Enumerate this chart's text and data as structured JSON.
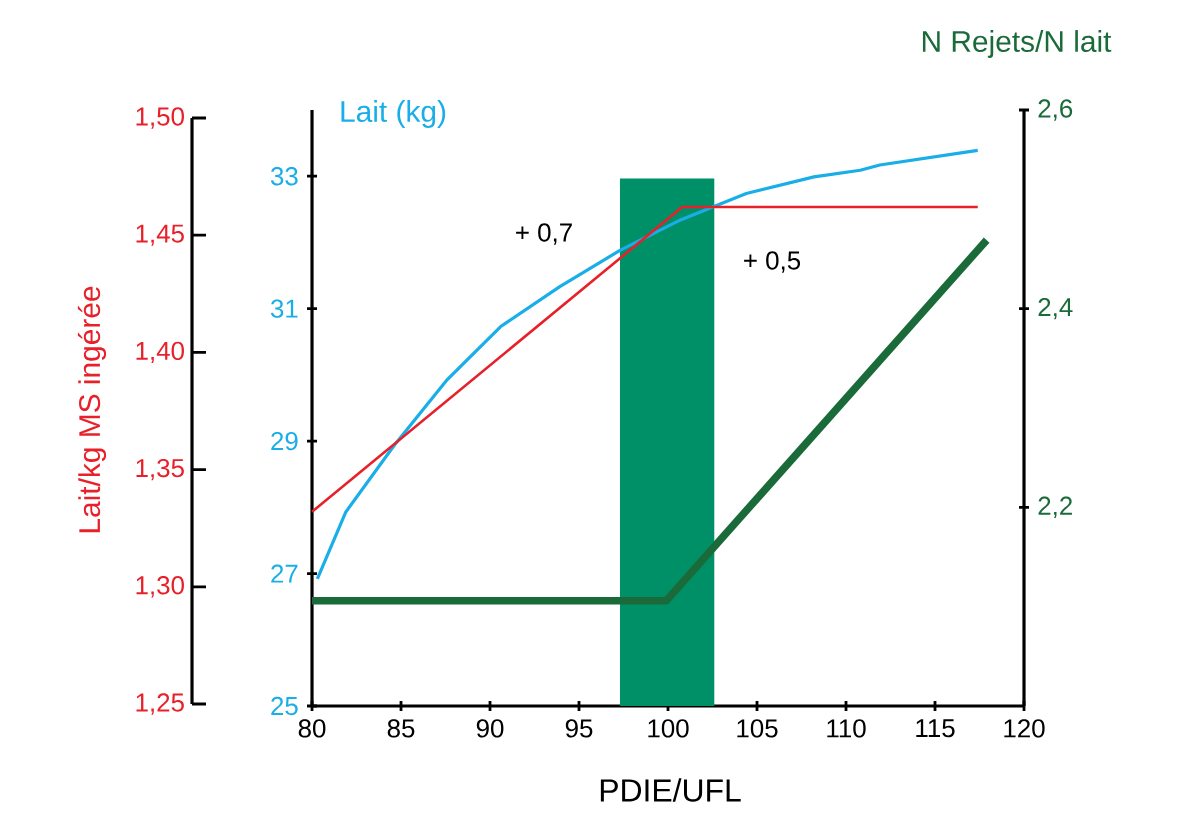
{
  "chart_data": {
    "type": "line",
    "xlabel": "PDIE/UFL",
    "ylabel": "Lait/kg MS ingérée",
    "y2label": "N Rejets/N lait",
    "y3label": "Lait (kg)",
    "xlim": [
      80,
      120
    ],
    "xticks": [
      80,
      85,
      90,
      95,
      100,
      105,
      110,
      115,
      120
    ],
    "ylim": [
      1.25,
      1.5
    ],
    "yticks": [
      {
        "value": 1.25,
        "label": "1,25"
      },
      {
        "value": 1.3,
        "label": "1,30"
      },
      {
        "value": 1.35,
        "label": "1,35"
      },
      {
        "value": 1.4,
        "label": "1,40"
      },
      {
        "value": 1.45,
        "label": "1,45"
      },
      {
        "value": 1.5,
        "label": "1,50"
      }
    ],
    "y2lim": [
      2.0,
      2.6
    ],
    "y2ticks": [
      {
        "value": 2.2,
        "label": "2,2"
      },
      {
        "value": 2.4,
        "label": "2,4"
      },
      {
        "value": 2.6,
        "label": "2,6"
      }
    ],
    "y3lim": [
      25,
      34
    ],
    "y3ticks": [
      25,
      27,
      29,
      31,
      33
    ],
    "series": [
      {
        "color": "#e8202a",
        "axis": "y",
        "x": [
          80,
          100.8,
          117.4
        ],
        "values": [
          1.332,
          1.462,
          1.462
        ]
      },
      {
        "color": "#1aaee8",
        "axis": "y3",
        "x": [
          80.3,
          81.9,
          84.6,
          87.6,
          90.6,
          93.9,
          97.3,
          100.7,
          104.4,
          108.2,
          110.8,
          111.9,
          117.4
        ],
        "values": [
          26.92,
          27.93,
          28.93,
          29.93,
          30.73,
          31.33,
          31.88,
          32.34,
          32.74,
          32.99,
          33.09,
          33.17,
          33.39
        ]
      },
      {
        "color": "#1b6b3a",
        "axis": "y2",
        "x": [
          80,
          99.9,
          117.9
        ],
        "values": [
          2.106,
          2.106,
          2.469
        ]
      }
    ],
    "bands": [
      {
        "axis": "x",
        "from": 97.3,
        "to": 102.6,
        "color": "#009068"
      }
    ],
    "annotations": [
      "+ 0,7",
      "+ 0,5"
    ],
    "grid": false,
    "marker": "none",
    "line_style": "solid"
  }
}
